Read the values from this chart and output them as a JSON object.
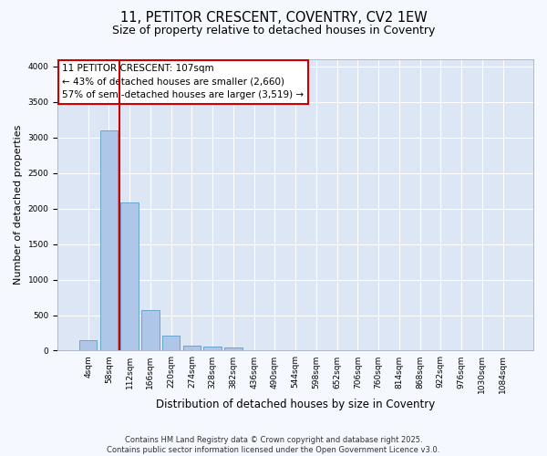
{
  "title": "11, PETITOR CRESCENT, COVENTRY, CV2 1EW",
  "subtitle": "Size of property relative to detached houses in Coventry",
  "xlabel": "Distribution of detached houses by size in Coventry",
  "ylabel": "Number of detached properties",
  "categories": [
    "4sqm",
    "58sqm",
    "112sqm",
    "166sqm",
    "220sqm",
    "274sqm",
    "328sqm",
    "382sqm",
    "436sqm",
    "490sqm",
    "544sqm",
    "598sqm",
    "652sqm",
    "706sqm",
    "760sqm",
    "814sqm",
    "868sqm",
    "922sqm",
    "976sqm",
    "1030sqm",
    "1084sqm"
  ],
  "values": [
    145,
    3100,
    2085,
    575,
    205,
    75,
    55,
    45,
    0,
    0,
    0,
    0,
    0,
    0,
    0,
    0,
    0,
    0,
    0,
    0,
    0
  ],
  "bar_color": "#aec6e8",
  "bar_edge_color": "#5a9dc8",
  "vline_color": "#cc0000",
  "vline_x_index": 1.5,
  "annotation_text": "11 PETITOR CRESCENT: 107sqm\n← 43% of detached houses are smaller (2,660)\n57% of semi-detached houses are larger (3,519) →",
  "annotation_box_facecolor": "#ffffff",
  "annotation_box_edgecolor": "#cc0000",
  "ylim": [
    0,
    4100
  ],
  "yticks": [
    0,
    500,
    1000,
    1500,
    2000,
    2500,
    3000,
    3500,
    4000
  ],
  "plot_bg_color": "#dce6f5",
  "fig_bg_color": "#f5f8ff",
  "grid_color": "#ffffff",
  "footer_line1": "Contains HM Land Registry data © Crown copyright and database right 2025.",
  "footer_line2": "Contains public sector information licensed under the Open Government Licence v3.0.",
  "title_fontsize": 10.5,
  "subtitle_fontsize": 9,
  "ylabel_fontsize": 8,
  "xlabel_fontsize": 8.5,
  "tick_fontsize": 6.5,
  "annot_fontsize": 7.5,
  "footer_fontsize": 6
}
